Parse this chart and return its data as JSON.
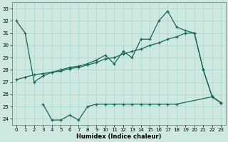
{
  "xlabel": "Humidex (Indice chaleur)",
  "bg_color": "#cce8e0",
  "line_color": "#1a6655",
  "grid_color": "#aad4cc",
  "xlim": [
    -0.5,
    23.5
  ],
  "ylim": [
    23.5,
    33.5
  ],
  "yticks": [
    24,
    25,
    26,
    27,
    28,
    29,
    30,
    31,
    32,
    33
  ],
  "xticks": [
    0,
    1,
    2,
    3,
    4,
    5,
    6,
    7,
    8,
    9,
    10,
    11,
    12,
    13,
    14,
    15,
    16,
    17,
    18,
    19,
    20,
    21,
    22,
    23
  ],
  "curve1_x": [
    0,
    1,
    2,
    3,
    4,
    5,
    6,
    7,
    8,
    9,
    10,
    11,
    12,
    13,
    14,
    15,
    16,
    17,
    18,
    19,
    20,
    21,
    22,
    23
  ],
  "curve1_y": [
    32,
    31,
    27,
    27.5,
    27.8,
    28.0,
    28.2,
    28.3,
    28.5,
    28.8,
    29.2,
    28.5,
    29.5,
    29.0,
    30.5,
    30.5,
    32.0,
    32.8,
    31.5,
    31.2,
    31.0,
    28.0,
    25.8,
    25.3
  ],
  "curve2_x": [
    0,
    1,
    2,
    3,
    4,
    5,
    6,
    7,
    8,
    9,
    10,
    11,
    12,
    13,
    14,
    15,
    16,
    17,
    18,
    19,
    20,
    21,
    22,
    23
  ],
  "curve2_y": [
    27.2,
    27.4,
    27.6,
    27.7,
    27.8,
    27.9,
    28.1,
    28.2,
    28.4,
    28.6,
    28.9,
    29.0,
    29.3,
    29.5,
    29.7,
    30.0,
    30.2,
    30.5,
    30.7,
    31.0,
    31.0,
    28.0,
    25.8,
    25.3
  ],
  "curve3_x": [
    3,
    4,
    5,
    6,
    7,
    8,
    9,
    10,
    11,
    12,
    13,
    14,
    15,
    16,
    17,
    18,
    22,
    23
  ],
  "curve3_y": [
    25.2,
    23.9,
    23.9,
    24.3,
    23.9,
    25.0,
    25.2,
    25.2,
    25.2,
    25.2,
    25.2,
    25.2,
    25.2,
    25.2,
    25.2,
    25.2,
    25.8,
    25.3
  ],
  "marker_curve1_x": [
    0,
    1,
    2,
    9,
    10,
    11,
    12,
    13,
    14,
    15,
    16,
    17,
    18,
    19,
    20,
    21,
    22,
    23
  ],
  "marker_curve1_y": [
    32,
    31,
    27,
    28.8,
    29.2,
    28.5,
    29.5,
    29.0,
    30.5,
    30.5,
    32.0,
    32.8,
    31.5,
    31.2,
    31.0,
    28.0,
    25.8,
    25.3
  ],
  "marker_curve2_x": [
    0,
    9,
    10,
    11,
    12,
    13,
    14,
    15,
    16,
    17,
    18,
    19
  ],
  "marker_curve2_y": [
    27.2,
    28.6,
    28.9,
    29.0,
    29.3,
    29.5,
    29.7,
    30.0,
    30.2,
    30.5,
    30.7,
    31.0
  ],
  "marker_curve3_x": [
    3,
    4,
    5,
    6,
    7,
    8,
    9
  ],
  "marker_curve3_y": [
    25.2,
    23.9,
    23.9,
    24.3,
    23.9,
    25.0,
    25.2
  ]
}
